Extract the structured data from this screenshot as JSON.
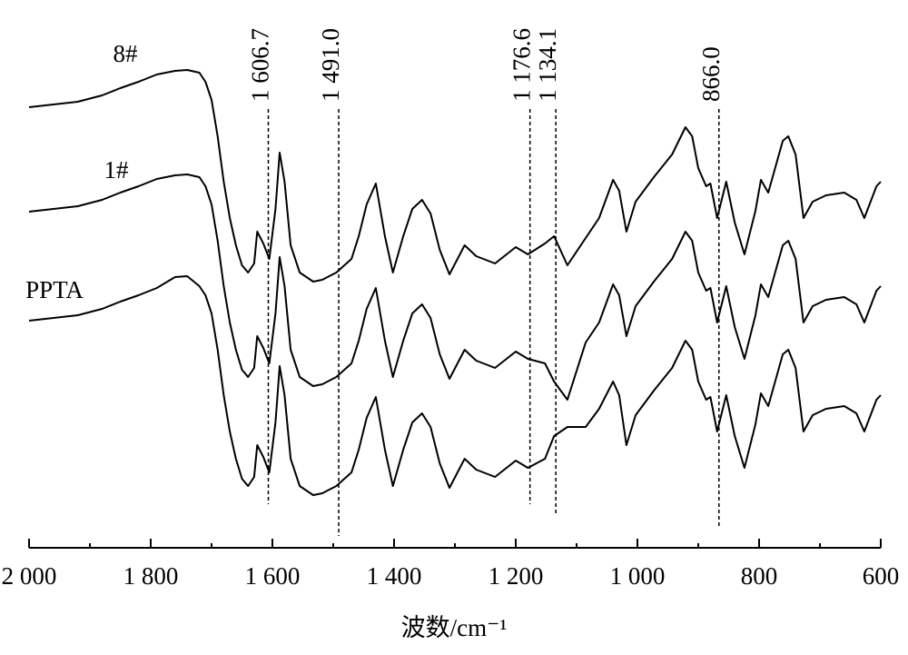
{
  "chart_data": {
    "type": "line",
    "xlabel": "波数/cm⁻¹",
    "xlim": [
      2000,
      600
    ],
    "xticks": [
      {
        "value": 2000,
        "label": "2 000"
      },
      {
        "value": 1800,
        "label": "1 800"
      },
      {
        "value": 1600,
        "label": "1 600"
      },
      {
        "value": 1400,
        "label": "1 400"
      },
      {
        "value": 1200,
        "label": "1 200"
      },
      {
        "value": 1000,
        "label": "1 000"
      },
      800,
      600
    ],
    "xminorticks": [
      1900,
      1700,
      1500,
      1300,
      1100,
      900,
      700
    ],
    "ylim": [
      0,
      540
    ],
    "annotations": [
      {
        "value": 1606.7,
        "label": "1 606.7"
      },
      {
        "value": 1491.0,
        "label": "1 491.0"
      },
      {
        "value": 1176.6,
        "label": "1 176.6"
      },
      {
        "value": 1134.1,
        "label": "1 134.1"
      },
      {
        "value": 866.0,
        "label": "866.0"
      }
    ],
    "x": [
      2000,
      1960,
      1920,
      1880,
      1850,
      1820,
      1790,
      1760,
      1740,
      1720,
      1710,
      1700,
      1690,
      1680,
      1670,
      1660,
      1650,
      1640,
      1630,
      1625,
      1615,
      1605,
      1595,
      1588,
      1580,
      1570,
      1555,
      1533,
      1518,
      1495,
      1470,
      1458,
      1445,
      1430,
      1415,
      1402,
      1385,
      1370,
      1354,
      1340,
      1325,
      1309,
      1284,
      1265,
      1234,
      1200,
      1180,
      1152,
      1137,
      1115,
      1085,
      1063,
      1040,
      1030,
      1018,
      1003,
      973,
      943,
      921,
      910,
      900,
      887,
      880,
      869,
      854,
      840,
      824,
      806,
      797,
      785,
      761,
      752,
      740,
      727,
      712,
      690,
      660,
      640,
      627,
      607,
      600
    ],
    "series": [
      {
        "name": "8#",
        "color": "#000000",
        "values": [
          482,
          485,
          488,
          495,
          503,
          510,
          518,
          522,
          523,
          520,
          510,
          490,
          450,
          400,
          360,
          330,
          308,
          300,
          310,
          345,
          332,
          315,
          370,
          432,
          400,
          330,
          300,
          290,
          292,
          300,
          315,
          340,
          375,
          398,
          340,
          300,
          340,
          370,
          380,
          365,
          325,
          298,
          330,
          318,
          310,
          328,
          320,
          332,
          340,
          308,
          338,
          360,
          402,
          390,
          345,
          378,
          405,
          430,
          460,
          450,
          415,
          395,
          398,
          360,
          400,
          355,
          320,
          368,
          402,
          388,
          445,
          450,
          430,
          360,
          378,
          385,
          388,
          380,
          360,
          395,
          400
        ]
      },
      {
        "name": "1#",
        "color": "#000000",
        "values": [
          367,
          370,
          373,
          380,
          388,
          395,
          403,
          407,
          408,
          405,
          395,
          375,
          335,
          285,
          245,
          215,
          193,
          185,
          195,
          230,
          217,
          200,
          255,
          317,
          285,
          215,
          185,
          175,
          177,
          185,
          200,
          225,
          260,
          283,
          225,
          185,
          225,
          255,
          265,
          250,
          210,
          183,
          215,
          203,
          195,
          213,
          205,
          200,
          180,
          160,
          223,
          245,
          287,
          275,
          230,
          263,
          290,
          315,
          345,
          335,
          300,
          280,
          283,
          245,
          285,
          240,
          205,
          253,
          287,
          273,
          330,
          335,
          315,
          245,
          263,
          270,
          273,
          265,
          245,
          280,
          285
        ]
      },
      {
        "name": "PPTA",
        "color": "#000000",
        "values": [
          247,
          250,
          253,
          260,
          268,
          275,
          283,
          295,
          296,
          285,
          275,
          255,
          215,
          165,
          125,
          95,
          73,
          65,
          75,
          110,
          97,
          80,
          135,
          197,
          165,
          95,
          65,
          55,
          57,
          65,
          80,
          105,
          140,
          163,
          105,
          65,
          105,
          135,
          145,
          130,
          90,
          63,
          95,
          83,
          75,
          93,
          85,
          95,
          120,
          130,
          130,
          150,
          180,
          165,
          110,
          143,
          170,
          195,
          225,
          215,
          180,
          160,
          163,
          125,
          165,
          120,
          85,
          133,
          167,
          153,
          210,
          215,
          195,
          125,
          143,
          150,
          153,
          145,
          125,
          160,
          165
        ]
      }
    ]
  }
}
